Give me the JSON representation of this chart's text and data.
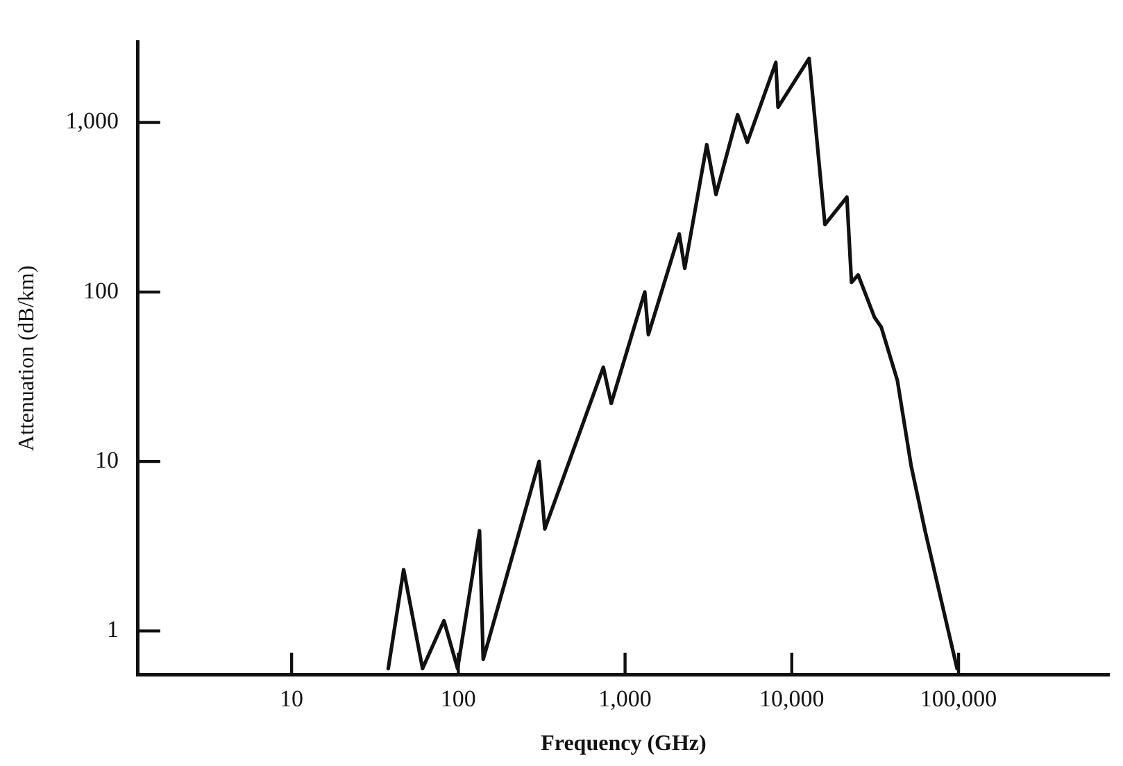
{
  "chart_data": {
    "type": "line",
    "xlabel": "Frequency (GHz)",
    "ylabel": "Attenuation (dB/km)",
    "x": [
      38,
      47,
      61,
      82,
      99,
      134,
      141,
      305,
      330,
      741,
      826,
      1313,
      1380,
      2113,
      2280,
      3090,
      3510,
      4730,
      5410,
      8020,
      8270,
      12700,
      15800,
      21400,
      22800,
      25000,
      31300,
      34400,
      43000,
      52000,
      63000,
      98000
    ],
    "series": [
      {
        "color": "#111111",
        "values": [
          0.6,
          2.3,
          0.6,
          1.15,
          0.6,
          3.9,
          0.68,
          10,
          4,
          36,
          22,
          100,
          56,
          220,
          138,
          740,
          376,
          1110,
          764,
          2260,
          1230,
          2390,
          250,
          363,
          114,
          126,
          71,
          62,
          30,
          9.4,
          3.9,
          0.6
        ]
      }
    ],
    "log": "xy",
    "xlim": [
      1.2,
      800000
    ],
    "ylim": [
      0.55,
      3000
    ],
    "xticks": [
      {
        "value": 10,
        "label": "10"
      },
      {
        "value": 100,
        "label": "100"
      },
      {
        "value": 1000,
        "label": "1,000"
      },
      {
        "value": 10000,
        "label": "10,000"
      },
      {
        "value": 100000,
        "label": "100,000"
      }
    ],
    "yticks": [
      {
        "value": 1,
        "label": "1"
      },
      {
        "value": 10,
        "label": "10"
      },
      {
        "value": 100,
        "label": "100"
      },
      {
        "value": 1000,
        "label": "1,000"
      }
    ],
    "grid": false,
    "legend": false,
    "marker": "none",
    "line_style": "solid"
  }
}
